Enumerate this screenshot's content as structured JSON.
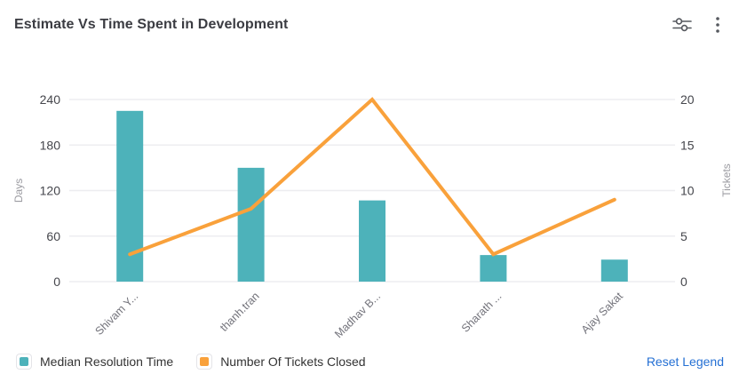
{
  "header": {
    "title": "Estimate Vs Time Spent in Development",
    "icons": [
      "settings-sliders",
      "kebab-menu"
    ]
  },
  "chart_data": {
    "type": "combo",
    "categories": [
      "Shivam Y...",
      "thanh.tran",
      "Madhav B...",
      "Sharath ...",
      "Ajay Sakat"
    ],
    "series": [
      {
        "name": "Median Resolution Time",
        "type": "bar",
        "axis": "left",
        "color": "#4db2ba",
        "values": [
          225,
          150,
          107,
          35,
          29
        ]
      },
      {
        "name": "Number Of Tickets Closed",
        "type": "line",
        "axis": "right",
        "color": "#f9a13b",
        "values": [
          3,
          8,
          20,
          3,
          9
        ]
      }
    ],
    "left_axis": {
      "label": "Days",
      "ticks": [
        0,
        60,
        120,
        180,
        240
      ],
      "max": 240
    },
    "right_axis": {
      "label": "Tickets",
      "ticks": [
        0,
        5,
        10,
        15,
        20
      ],
      "max": 20
    },
    "grid": true,
    "legend_position": "bottom"
  },
  "legend": {
    "items": [
      {
        "label": "Median Resolution Time",
        "color": "#4db2ba"
      },
      {
        "label": "Number Of Tickets Closed",
        "color": "#f9a13b"
      }
    ],
    "reset_label": "Reset Legend"
  },
  "colors": {
    "gridline": "#ededf0",
    "tick_text": "#45464c",
    "category_text": "#73737b",
    "axis_title_text": "#9b9ba1",
    "icon": "#55585e",
    "link": "#2570d4"
  }
}
